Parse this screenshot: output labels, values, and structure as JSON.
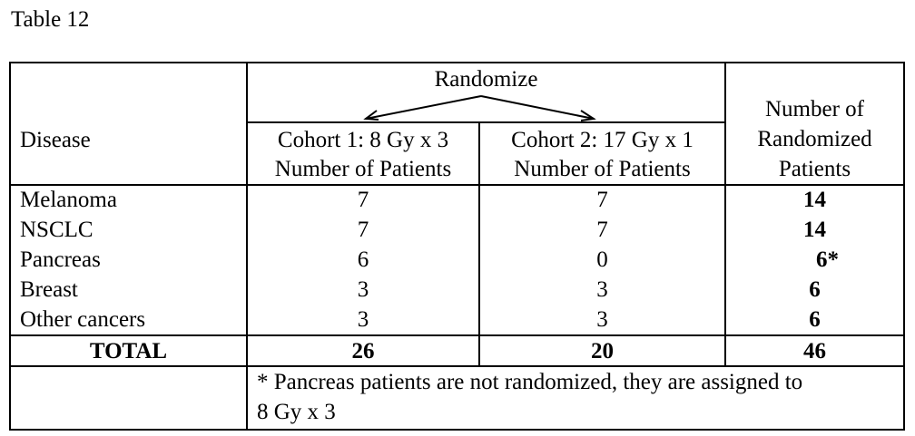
{
  "caption": "Table 12",
  "header": {
    "disease": "Disease",
    "randomize": "Randomize",
    "cohort1_line1": "Cohort 1: 8 Gy x 3",
    "cohort1_line2": "Number of Patients",
    "cohort2_line1": "Cohort 2: 17 Gy x 1",
    "cohort2_line2": "Number of Patients",
    "total_line1": "Number of",
    "total_line2": "Randomized",
    "total_line3": "Patients"
  },
  "rows": [
    {
      "disease": "Melanoma",
      "cohort1": "7",
      "cohort2": "7",
      "total": "14"
    },
    {
      "disease": "NSCLC",
      "cohort1": "7",
      "cohort2": "7",
      "total": "14"
    },
    {
      "disease": "Pancreas",
      "cohort1": "6",
      "cohort2": "0",
      "total": "6*"
    },
    {
      "disease": "Breast",
      "cohort1": "3",
      "cohort2": "3",
      "total": "6"
    },
    {
      "disease": "Other cancers",
      "cohort1": "3",
      "cohort2": "3",
      "total": "6"
    }
  ],
  "totals": {
    "label": "TOTAL",
    "cohort1": "26",
    "cohort2": "20",
    "total": "46"
  },
  "footnote_line1": "* Pancreas patients are not randomized, they are assigned to",
  "footnote_line2": "8 Gy x 3"
}
